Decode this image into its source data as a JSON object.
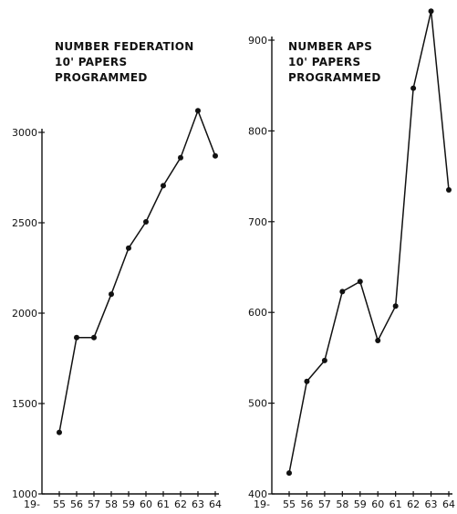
{
  "chart_data": [
    {
      "type": "line",
      "title_lines": [
        "NUMBER FEDERATION",
        "10' PAPERS",
        "PROGRAMMED"
      ],
      "x_prefix": "19-",
      "categories": [
        "55",
        "56",
        "57",
        "58",
        "59",
        "60",
        "61",
        "62",
        "63",
        "64"
      ],
      "values": [
        1340,
        1865,
        1865,
        2105,
        2360,
        2505,
        2705,
        2860,
        3120,
        2870
      ],
      "ylim": [
        1000,
        3000
      ],
      "yticks": [
        1000,
        1500,
        2000,
        2500,
        3000
      ],
      "ytick_labels": [
        "1000",
        "1500",
        "2000",
        "2500",
        "3000"
      ]
    },
    {
      "type": "line",
      "title_lines": [
        "NUMBER APS",
        "10' PAPERS",
        "PROGRAMMED"
      ],
      "x_prefix": "19-",
      "categories": [
        "55",
        "56",
        "57",
        "58",
        "59",
        "60",
        "61",
        "62",
        "63",
        "64"
      ],
      "values": [
        423,
        524,
        547,
        623,
        634,
        569,
        607,
        847,
        932,
        735
      ],
      "ylim": [
        400,
        900
      ],
      "yticks": [
        400,
        500,
        600,
        700,
        800,
        900
      ],
      "ytick_labels": [
        "400",
        "500",
        "600",
        "700",
        "800",
        "900"
      ]
    }
  ]
}
